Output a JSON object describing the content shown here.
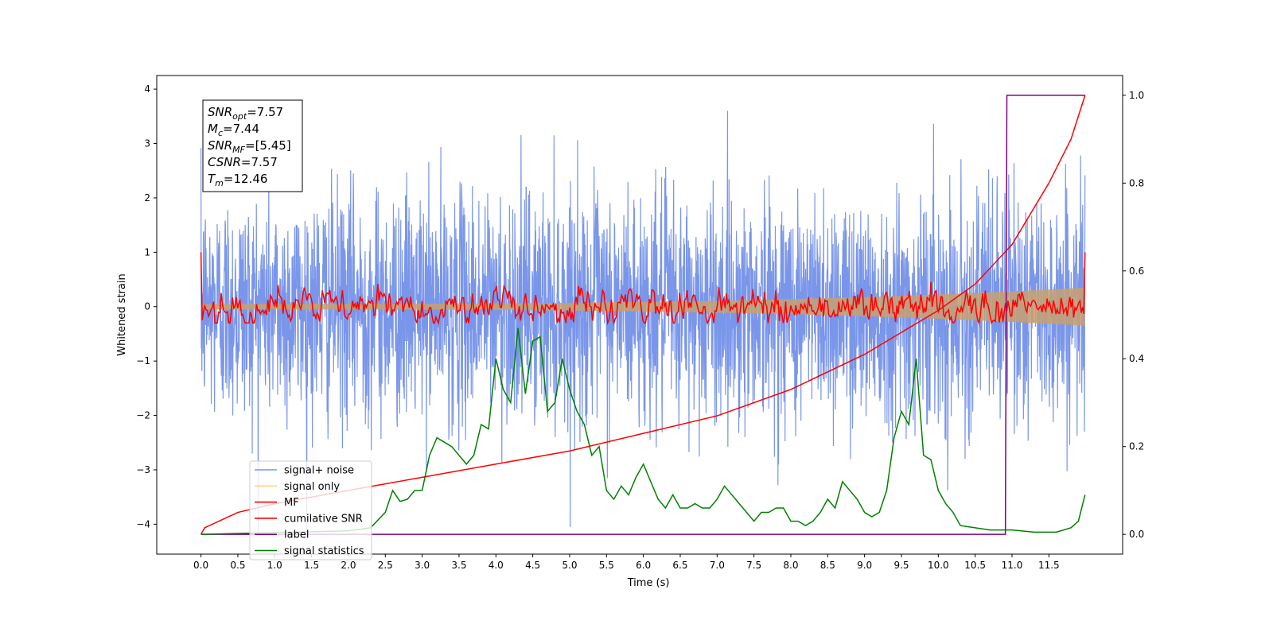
{
  "chart_data": {
    "type": "line",
    "xlabel": "Time (s)",
    "ylabel": "Whitened strain",
    "xlim": [
      -0.6,
      12.5
    ],
    "ylim": [
      -4.55,
      4.25
    ],
    "y2lim": [
      -0.045,
      1.045
    ],
    "x_ticks": [
      "0.0",
      "0.5",
      "1.0",
      "1.5",
      "2.0",
      "2.5",
      "3.0",
      "3.5",
      "4.0",
      "4.5",
      "5.0",
      "5.5",
      "6.0",
      "6.5",
      "7.0",
      "7.5",
      "8.0",
      "8.5",
      "9.0",
      "9.5",
      "10.0",
      "10.5",
      "11.0",
      "11.5"
    ],
    "y_ticks": [
      "4",
      "3",
      "2",
      "1",
      "0",
      "−1",
      "−2",
      "−3",
      "−4"
    ],
    "y2_ticks": [
      "1.0",
      "0.8",
      "0.6",
      "0.4",
      "0.2",
      "0.0"
    ],
    "legend_placement": "lower-left",
    "grid": false,
    "series": [
      {
        "name": "signal+ noise",
        "color": "#4169e1",
        "axis": "left",
        "x_range": [
          0,
          11.99
        ],
        "amplitude_range": [
          -4.15,
          3.9
        ]
      },
      {
        "name": "signal only",
        "color": "#ffa500",
        "axis": "left",
        "x_range": [
          0,
          11.99
        ],
        "envelope_start": 0.05,
        "envelope_end": 0.35
      },
      {
        "name": "MF",
        "color": "#ff0000",
        "axis": "left",
        "x_range": [
          0,
          11.99
        ],
        "amplitude_range": [
          -0.3,
          1.0
        ]
      },
      {
        "name": "cumilative SNR",
        "color": "#ff0000",
        "axis": "right",
        "x": [
          0,
          0.05,
          0.5,
          1,
          2,
          3,
          4,
          5,
          6,
          7,
          8,
          9,
          9.5,
          10,
          10.5,
          11,
          11.5,
          11.8,
          11.99
        ],
        "y": [
          0,
          0.015,
          0.05,
          0.07,
          0.1,
          0.13,
          0.16,
          0.19,
          0.23,
          0.27,
          0.33,
          0.41,
          0.46,
          0.51,
          0.57,
          0.66,
          0.8,
          0.9,
          1.0
        ]
      },
      {
        "name": "label",
        "color": "#800080",
        "axis": "right",
        "x": [
          0,
          10.91,
          10.93,
          11.99
        ],
        "y": [
          0,
          0,
          1,
          1
        ]
      },
      {
        "name": "signal statistics",
        "color": "#008000",
        "axis": "right",
        "x": [
          0,
          0.5,
          1,
          1.5,
          2,
          2.3,
          2.5,
          2.6,
          2.7,
          2.8,
          2.9,
          3.0,
          3.1,
          3.2,
          3.3,
          3.4,
          3.5,
          3.6,
          3.7,
          3.8,
          3.9,
          4.0,
          4.1,
          4.2,
          4.3,
          4.4,
          4.5,
          4.6,
          4.7,
          4.8,
          4.9,
          5.0,
          5.1,
          5.2,
          5.3,
          5.4,
          5.5,
          5.6,
          5.7,
          5.8,
          5.9,
          6.0,
          6.1,
          6.2,
          6.3,
          6.4,
          6.5,
          6.6,
          6.7,
          6.8,
          6.9,
          7.0,
          7.1,
          7.2,
          7.3,
          7.4,
          7.5,
          7.6,
          7.7,
          7.8,
          7.9,
          8.0,
          8.1,
          8.2,
          8.3,
          8.4,
          8.5,
          8.6,
          8.7,
          8.8,
          8.9,
          9.0,
          9.1,
          9.2,
          9.3,
          9.4,
          9.5,
          9.6,
          9.7,
          9.8,
          9.9,
          10.0,
          10.1,
          10.2,
          10.3,
          10.5,
          10.7,
          11.0,
          11.3,
          11.6,
          11.8,
          11.9,
          11.99
        ],
        "y": [
          0,
          0.002,
          0.004,
          0.006,
          0.008,
          0.015,
          0.05,
          0.1,
          0.075,
          0.08,
          0.1,
          0.1,
          0.18,
          0.22,
          0.21,
          0.2,
          0.18,
          0.16,
          0.18,
          0.25,
          0.24,
          0.4,
          0.33,
          0.3,
          0.47,
          0.32,
          0.44,
          0.45,
          0.28,
          0.3,
          0.4,
          0.33,
          0.28,
          0.25,
          0.18,
          0.2,
          0.1,
          0.08,
          0.11,
          0.09,
          0.13,
          0.16,
          0.12,
          0.08,
          0.06,
          0.09,
          0.06,
          0.06,
          0.07,
          0.06,
          0.06,
          0.08,
          0.11,
          0.09,
          0.07,
          0.05,
          0.03,
          0.05,
          0.05,
          0.06,
          0.06,
          0.03,
          0.03,
          0.02,
          0.03,
          0.05,
          0.08,
          0.06,
          0.12,
          0.1,
          0.08,
          0.05,
          0.04,
          0.05,
          0.1,
          0.22,
          0.28,
          0.25,
          0.4,
          0.18,
          0.17,
          0.1,
          0.07,
          0.05,
          0.02,
          0.015,
          0.01,
          0.01,
          0.005,
          0.005,
          0.015,
          0.03,
          0.09
        ]
      }
    ],
    "annotation": [
      {
        "label": "SNR",
        "sub": "opt",
        "value": "=7.57"
      },
      {
        "label": "M",
        "sub": "c",
        "value": "=7.44"
      },
      {
        "label": "SNR",
        "sub": "MF",
        "value": "=[5.45]"
      },
      {
        "label": "CSNR",
        "sub": "",
        "value": "=7.57"
      },
      {
        "label": "T",
        "sub": "m",
        "value": "=12.46"
      }
    ]
  }
}
